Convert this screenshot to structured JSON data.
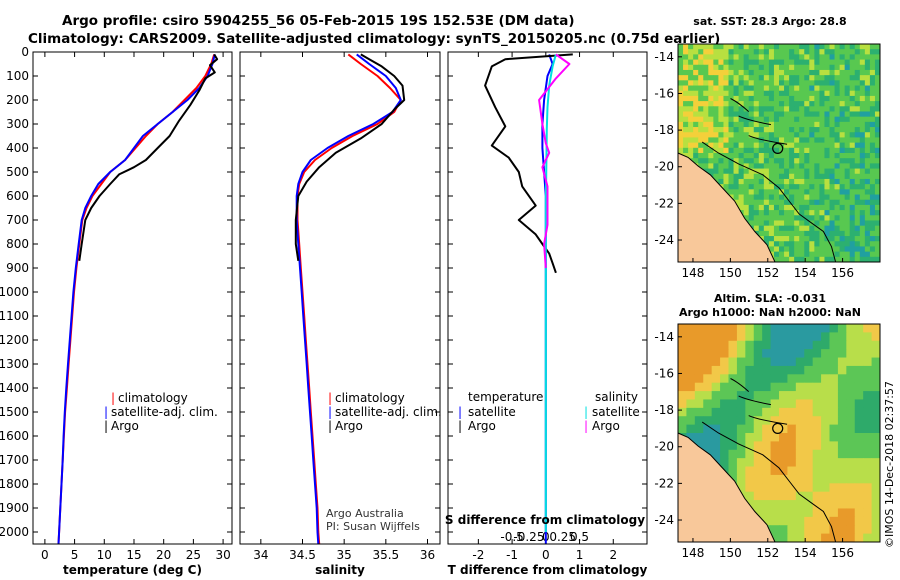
{
  "header": {
    "line1": "Argo profile: csiro 5904255_56 05-Feb-2015 19S 152.53E (DM data)",
    "line2": "Climatology: CARS2009. Satellite-adjusted climatology: synTS_20150205.nc (0.75d earlier)"
  },
  "credit": {
    "line1": "Argo Australia",
    "line2": "PI: Susan Wijffels"
  },
  "footer_stamp": "©IMOS 14-Dec-2018 02:37:57",
  "colors": {
    "climatology": "#ff0000",
    "satellite": "#0000ff",
    "argo": "#000000",
    "sat_salinity": "#00e0e0",
    "argo_salinity": "#ff00ff",
    "land": "#f8c89a"
  },
  "depth_axis": {
    "range": [
      0,
      2050
    ],
    "ticks": [
      0,
      100,
      200,
      300,
      400,
      500,
      600,
      700,
      800,
      900,
      1000,
      1100,
      1200,
      1300,
      1400,
      1500,
      1600,
      1700,
      1800,
      1900,
      2000
    ],
    "labels": [
      "0",
      "100",
      "200",
      "300",
      "400",
      "500",
      "600",
      "700",
      "800",
      "900",
      "1000",
      "1100",
      "1200",
      "1300",
      "1400",
      "1500",
      "1600",
      "1700",
      "1800",
      "1900",
      "2000"
    ]
  },
  "chart_data": [
    {
      "type": "line",
      "id": "temperature",
      "xlabel": "temperature (deg C)",
      "xlim": [
        -2,
        31.5
      ],
      "xticks": [
        0,
        5,
        10,
        15,
        20,
        25,
        30
      ],
      "xticklabels": [
        "0",
        "5",
        "10",
        "15",
        "20",
        "25",
        "30"
      ],
      "ylim": [
        0,
        2050
      ],
      "yreversed": true,
      "legend": [
        "climatology",
        "satellite-adj. clim.",
        "Argo"
      ],
      "series": [
        {
          "name": "climatology",
          "color": "#ff0000",
          "x": [
            28.5,
            28,
            27,
            25.5,
            23.5,
            21.5,
            19,
            17,
            13.5,
            11,
            9.5,
            8,
            7,
            6.3,
            5.8,
            5.3,
            4.9,
            4.6,
            4.3,
            4,
            3.7,
            3.4,
            3.2,
            3,
            2.8,
            2.6,
            2.5,
            2.4,
            2.3
          ],
          "y": [
            10,
            50,
            100,
            150,
            200,
            250,
            300,
            350,
            450,
            500,
            550,
            600,
            650,
            700,
            800,
            900,
            1000,
            1100,
            1200,
            1300,
            1400,
            1500,
            1600,
            1700,
            1800,
            1900,
            1950,
            2000,
            2050
          ]
        },
        {
          "name": "satellite-adj. clim.",
          "color": "#0000ff",
          "x": [
            28.6,
            28.2,
            27.4,
            26,
            24,
            21.5,
            19,
            16.5,
            13.5,
            11,
            9,
            7.8,
            6.8,
            6.2,
            5.7,
            5.2,
            4.8,
            4.5,
            4.2,
            3.9,
            3.6,
            3.35,
            3.15,
            3,
            2.8,
            2.6,
            2.5,
            2.4,
            2.3
          ],
          "y": [
            10,
            50,
            100,
            150,
            200,
            250,
            300,
            350,
            450,
            500,
            550,
            600,
            650,
            700,
            800,
            900,
            1000,
            1100,
            1200,
            1300,
            1400,
            1500,
            1600,
            1700,
            1800,
            1900,
            1950,
            2000,
            2050
          ]
        },
        {
          "name": "Argo",
          "color": "#000000",
          "x": [
            28.5,
            29,
            27.8,
            28.6,
            27,
            26,
            24.5,
            22.5,
            21,
            19,
            17,
            15,
            12.5,
            11,
            9.2,
            7.8,
            6.8,
            6.2,
            5.8
          ],
          "y": [
            10,
            30,
            55,
            85,
            110,
            160,
            220,
            290,
            350,
            400,
            450,
            480,
            510,
            550,
            600,
            650,
            700,
            800,
            870
          ]
        }
      ]
    },
    {
      "type": "line",
      "id": "salinity",
      "xlabel": "salinity",
      "xlim": [
        33.75,
        36.15
      ],
      "xticks": [
        34,
        34.5,
        35,
        35.5,
        36
      ],
      "xticklabels": [
        "34",
        "34.5",
        "35",
        "35.5",
        "36"
      ],
      "ylim": [
        0,
        2050
      ],
      "yreversed": true,
      "legend": [
        "climatology",
        "satellite-adj. clim.",
        "Argo"
      ],
      "series": [
        {
          "name": "climatology",
          "color": "#ff0000",
          "x": [
            35.05,
            35.2,
            35.4,
            35.55,
            35.68,
            35.6,
            35.4,
            35.1,
            34.85,
            34.65,
            34.52,
            34.46,
            34.44,
            34.44,
            34.46,
            34.48,
            34.5,
            34.52,
            34.54,
            34.56,
            34.58,
            34.6,
            34.62,
            34.64,
            34.66,
            34.68,
            34.69,
            34.7
          ],
          "y": [
            10,
            50,
            100,
            150,
            200,
            250,
            300,
            350,
            400,
            450,
            500,
            550,
            600,
            700,
            800,
            900,
            1000,
            1100,
            1200,
            1300,
            1400,
            1500,
            1600,
            1700,
            1800,
            1900,
            2000,
            2050
          ]
        },
        {
          "name": "satellite-adj. clim.",
          "color": "#0000ff",
          "x": [
            35.15,
            35.3,
            35.5,
            35.62,
            35.68,
            35.58,
            35.35,
            35.05,
            34.8,
            34.6,
            34.5,
            34.45,
            34.43,
            34.43,
            34.45,
            34.47,
            34.49,
            34.51,
            34.53,
            34.55,
            34.57,
            34.59,
            34.61,
            34.63,
            34.65,
            34.67,
            34.68,
            34.69
          ],
          "y": [
            10,
            50,
            100,
            150,
            200,
            250,
            300,
            350,
            400,
            450,
            500,
            550,
            600,
            700,
            800,
            900,
            1000,
            1100,
            1200,
            1300,
            1400,
            1500,
            1600,
            1700,
            1800,
            1900,
            2000,
            2050
          ]
        },
        {
          "name": "Argo",
          "color": "#000000",
          "x": [
            35.2,
            35.3,
            35.45,
            35.6,
            35.7,
            35.72,
            35.6,
            35.45,
            35.2,
            34.9,
            34.7,
            34.55,
            34.45,
            34.42,
            34.42,
            34.45
          ],
          "y": [
            10,
            30,
            60,
            100,
            140,
            200,
            240,
            300,
            360,
            420,
            480,
            540,
            600,
            700,
            800,
            870
          ]
        }
      ]
    },
    {
      "type": "line",
      "id": "differences",
      "xlabel": "T difference from climatology",
      "xlim": [
        -2.9,
        3.0
      ],
      "xticks": [
        -2,
        -1,
        0,
        1,
        2
      ],
      "xticklabels": [
        "-2",
        "-1",
        "0",
        "1",
        "2"
      ],
      "top_axis_label": "S difference from climatology",
      "top_xticks": [
        -0.5,
        -0.25,
        0,
        0.25,
        0.5
      ],
      "top_xticklabels": [
        "-0.5",
        "-0.25",
        "0",
        "0.25",
        "0.5"
      ],
      "ylim": [
        0,
        2050
      ],
      "yreversed": true,
      "legend_left_title": "temperature",
      "legend_right_title": "salinity",
      "legend_left": [
        "satellite",
        "Argo"
      ],
      "legend_right": [
        "satellite",
        "Argo"
      ],
      "series": [
        {
          "name": "T satellite",
          "color": "#0000ff",
          "x": [
            0.1,
            0.2,
            0.05,
            -0.05,
            -0.1,
            -0.1,
            -0.05,
            0,
            0,
            0,
            0,
            0,
            0,
            0,
            0,
            0,
            0,
            0,
            0
          ],
          "y": [
            10,
            50,
            100,
            200,
            300,
            400,
            500,
            600,
            700,
            800,
            900,
            1000,
            1200,
            1400,
            1600,
            1700,
            1800,
            1900,
            2050
          ]
        },
        {
          "name": "T Argo",
          "color": "#000000",
          "x": [
            0.8,
            -1.2,
            -1.6,
            -1.8,
            -1.5,
            -1.2,
            -1.6,
            -1.1,
            -0.8,
            -0.7,
            -0.3,
            -0.8,
            -0.3,
            -0.1,
            0.1,
            0.2,
            0.3
          ],
          "y": [
            10,
            30,
            60,
            140,
            230,
            310,
            390,
            440,
            500,
            560,
            640,
            700,
            760,
            800,
            840,
            880,
            920
          ]
        },
        {
          "name": "S satellite",
          "color": "#00e0e0",
          "x": [
            0.3,
            0.2,
            0.1,
            0.05,
            0.03,
            0.02,
            0.01,
            0,
            0,
            0,
            0,
            0,
            0,
            0,
            0,
            0,
            0,
            0
          ],
          "y": [
            10,
            60,
            140,
            230,
            320,
            420,
            520,
            620,
            720,
            820,
            900,
            1000,
            1200,
            1400,
            1600,
            1800,
            1900,
            2000
          ]
        },
        {
          "name": "S Argo",
          "color": "#ff00ff",
          "x": [
            0.3,
            0.7,
            0.3,
            -0.2,
            -0.1,
            0,
            0.1,
            -0.1,
            0.05,
            0.05,
            0.05,
            -0.05,
            0
          ],
          "y": [
            10,
            50,
            110,
            200,
            300,
            380,
            420,
            480,
            560,
            640,
            720,
            800,
            900
          ]
        }
      ]
    },
    {
      "type": "heatmap",
      "id": "sst_map",
      "title": "sat. SST: 28.3 Argo: 28.8",
      "xlim": [
        147.2,
        158
      ],
      "ylim": [
        -25.2,
        -13.3
      ],
      "xticks": [
        148,
        150,
        152,
        154,
        156
      ],
      "xticklabels": [
        "148",
        "150",
        "152",
        "154",
        "156"
      ],
      "yticks": [
        -14,
        -16,
        -18,
        -20,
        -22,
        -24
      ],
      "yticklabels": [
        "-14",
        "-16",
        "-18",
        "-20",
        "-22",
        "-24"
      ],
      "float_position": {
        "lon": 152.53,
        "lat": -19
      }
    },
    {
      "type": "heatmap",
      "id": "sla_map",
      "title": "Altim. SLA: -0.031",
      "subtitle": "Argo h1000: NaN h2000: NaN",
      "xlim": [
        147.2,
        158
      ],
      "ylim": [
        -25.2,
        -13.3
      ],
      "xticks": [
        148,
        150,
        152,
        154,
        156
      ],
      "xticklabels": [
        "148",
        "150",
        "152",
        "154",
        "156"
      ],
      "yticks": [
        -14,
        -16,
        -18,
        -20,
        -22,
        -24
      ],
      "yticklabels": [
        "-14",
        "-16",
        "-18",
        "-20",
        "-22",
        "-24"
      ],
      "float_position": {
        "lon": 152.53,
        "lat": -19
      }
    }
  ]
}
